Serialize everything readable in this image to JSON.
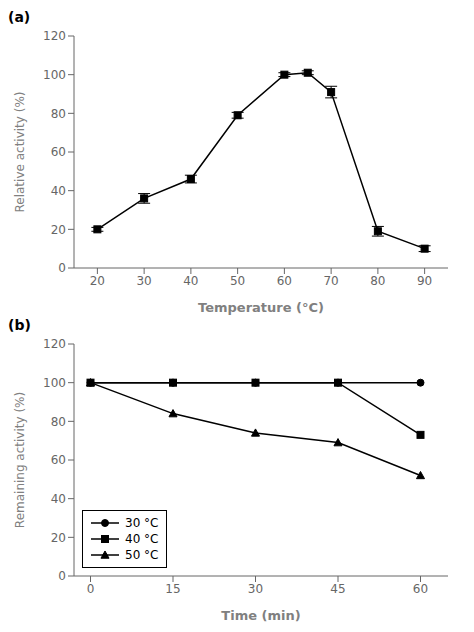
{
  "chart_data": [
    {
      "type": "line",
      "title": "(a)",
      "xlabel": "Temperature (°C)",
      "ylabel": "Relative activity (%)",
      "x": [
        20,
        30,
        40,
        50,
        60,
        65,
        70,
        80,
        90
      ],
      "series": [
        {
          "color": "#000000",
          "marker": "square",
          "values": [
            20,
            36,
            46,
            79,
            100,
            101,
            91,
            19,
            10
          ],
          "yerr": [
            1.0,
            2.5,
            2.0,
            1.5,
            1.0,
            1.0,
            3.0,
            2.5,
            1.5
          ]
        }
      ],
      "xlim": [
        15,
        95
      ],
      "xticks": [
        20,
        30,
        40,
        50,
        60,
        70,
        80,
        90
      ],
      "ylim": [
        0,
        120
      ],
      "yticks": [
        0,
        20,
        40,
        60,
        80,
        100,
        120
      ],
      "grid": false
    },
    {
      "type": "line",
      "title": "(b)",
      "xlabel": "Time (min)",
      "ylabel": "Remaining activity (%)",
      "x": [
        0,
        15,
        30,
        45,
        60
      ],
      "series": [
        {
          "name": "30 °C",
          "color": "#000000",
          "marker": "circle",
          "values": [
            100,
            100,
            100,
            100,
            100
          ]
        },
        {
          "name": "40 °C",
          "color": "#000000",
          "marker": "square",
          "values": [
            100,
            100,
            100,
            100,
            73
          ]
        },
        {
          "name": "50 °C",
          "color": "#000000",
          "marker": "triangle",
          "values": [
            100,
            84,
            74,
            69,
            52
          ]
        }
      ],
      "xlim": [
        -3,
        65
      ],
      "xticks": [
        0,
        15,
        30,
        45,
        60
      ],
      "ylim": [
        0,
        120
      ],
      "yticks": [
        0,
        20,
        40,
        60,
        80,
        100,
        120
      ],
      "grid": false,
      "legend": "lower left"
    }
  ]
}
